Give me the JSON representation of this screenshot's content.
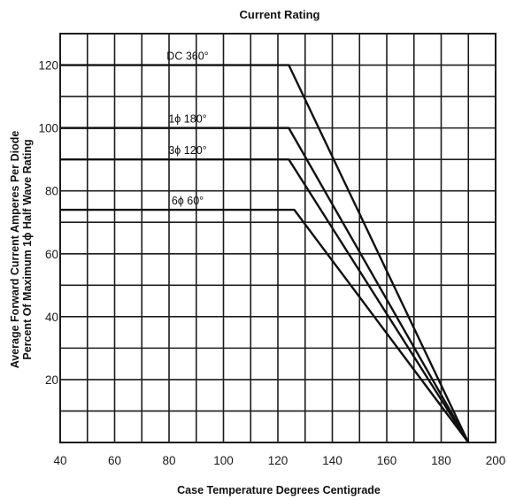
{
  "chart_data": {
    "type": "line",
    "title": "Current Rating",
    "xlabel": "Case Temperature Degrees Centigrade",
    "ylabel_line1": "Average Forward Current Amperes Per Diode",
    "ylabel_line2": "Percent Of Maximum 1ϕ Half Wave Rating",
    "xlim": [
      40,
      200
    ],
    "ylim": [
      0,
      130
    ],
    "x_ticks": [
      "40",
      "60",
      "80",
      "100",
      "120",
      "140",
      "160",
      "180",
      "200"
    ],
    "x_tick_values": [
      40,
      60,
      80,
      100,
      120,
      140,
      160,
      180,
      200
    ],
    "y_ticks": [
      "20",
      "40",
      "60",
      "80",
      "100",
      "120"
    ],
    "y_tick_values": [
      20,
      40,
      60,
      80,
      100,
      120
    ],
    "grid": true,
    "grid_x_step": 10,
    "grid_y_step": 10,
    "series": [
      {
        "name": "DC 360°",
        "x": [
          40,
          124,
          190
        ],
        "y": [
          120,
          120,
          0
        ]
      },
      {
        "name": "1ϕ 180°",
        "x": [
          40,
          124,
          190
        ],
        "y": [
          100,
          100,
          0
        ]
      },
      {
        "name": "3ϕ 120°",
        "x": [
          40,
          124,
          190
        ],
        "y": [
          90,
          90,
          0
        ]
      },
      {
        "name": "6ϕ 60°",
        "x": [
          40,
          126,
          190
        ],
        "y": [
          74,
          74,
          0
        ]
      }
    ]
  }
}
